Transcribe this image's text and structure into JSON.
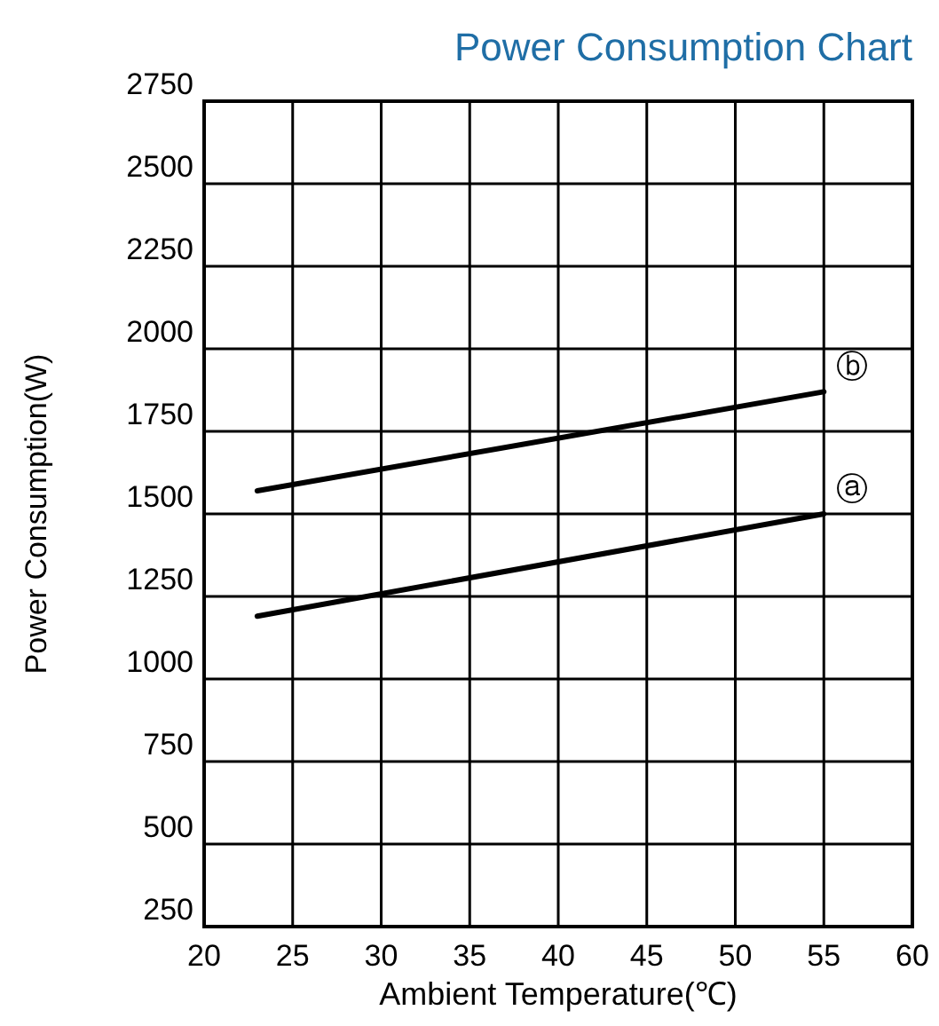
{
  "chart_data": {
    "type": "line",
    "title": "Power Consumption Chart",
    "xlabel": "Ambient Temperature(℃)",
    "ylabel": "Power Consumption(W)",
    "x": [
      23,
      55
    ],
    "xlim": [
      20,
      60
    ],
    "xticks": [
      20,
      25,
      30,
      35,
      40,
      45,
      50,
      55,
      60
    ],
    "ylim": [
      250,
      2750
    ],
    "yticks": [
      250,
      500,
      750,
      1000,
      1250,
      1500,
      1750,
      2000,
      2250,
      2500,
      2750
    ],
    "grid": true,
    "marker": "none",
    "line_style": "solid",
    "series": [
      {
        "name": "ⓐ",
        "color": "#000000",
        "values": [
          1190,
          1500
        ]
      },
      {
        "name": "ⓑ",
        "color": "#000000",
        "values": [
          1570,
          1870
        ]
      }
    ]
  }
}
